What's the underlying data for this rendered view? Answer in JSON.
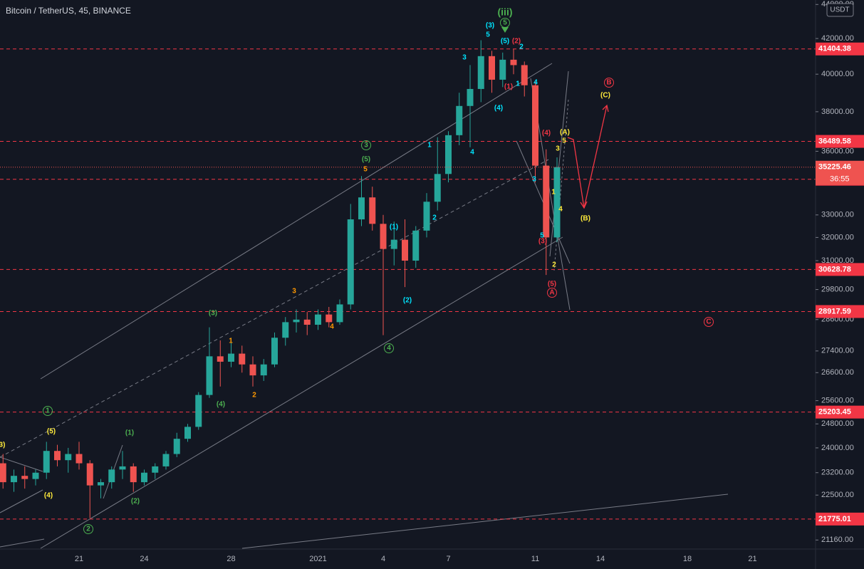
{
  "header": {
    "symbol": "Bitcoin / TetherUS, 45, BINANCE",
    "currency": "USDT"
  },
  "chart_data": {
    "type": "candlestick",
    "log_scale": true,
    "up_color": "#26a69a",
    "down_color": "#ef5350",
    "categories": [
      null,
      null,
      null,
      null,
      null,
      null,
      null,
      "21",
      null,
      null,
      null,
      null,
      null,
      "24",
      null,
      null,
      null,
      null,
      null,
      null,
      null,
      "28",
      null,
      null,
      null,
      null,
      null,
      null,
      null,
      "2021",
      null,
      null,
      null,
      null,
      null,
      "4",
      null,
      null,
      null,
      null,
      null,
      "7",
      null,
      null,
      null,
      null,
      null,
      null,
      null,
      "11",
      null,
      null,
      null,
      null,
      null,
      "14",
      null,
      null,
      null,
      null,
      null,
      null,
      null,
      "18",
      null,
      null,
      null,
      null,
      null,
      "21",
      null,
      null,
      null,
      null,
      null
    ],
    "values": [
      [
        23500,
        23800,
        22700,
        22900
      ],
      [
        22900,
        23300,
        22600,
        23100
      ],
      [
        23100,
        23400,
        22700,
        23000
      ],
      [
        23000,
        23300,
        22800,
        23200
      ],
      [
        23200,
        24200,
        23000,
        23900
      ],
      [
        23900,
        24100,
        23400,
        23600
      ],
      [
        23600,
        24000,
        23200,
        23800
      ],
      [
        23800,
        24200,
        23300,
        23500
      ],
      [
        23500,
        23600,
        21800,
        22800
      ],
      [
        22800,
        23000,
        22400,
        22900
      ],
      [
        22900,
        23400,
        22700,
        23300
      ],
      [
        23300,
        23900,
        23000,
        23400
      ],
      [
        23400,
        23500,
        22600,
        22900
      ],
      [
        22900,
        23300,
        22800,
        23200
      ],
      [
        23200,
        23500,
        23000,
        23400
      ],
      [
        23400,
        23900,
        23300,
        23800
      ],
      [
        23800,
        24500,
        23700,
        24300
      ],
      [
        24300,
        24800,
        24200,
        24700
      ],
      [
        24700,
        25900,
        24600,
        25800
      ],
      [
        25800,
        28300,
        25700,
        27200
      ],
      [
        27200,
        27800,
        26100,
        27000
      ],
      [
        27000,
        27900,
        26800,
        27300
      ],
      [
        27300,
        27600,
        26600,
        26900
      ],
      [
        26900,
        27200,
        26100,
        26500
      ],
      [
        26500,
        27100,
        26300,
        26900
      ],
      [
        26900,
        28100,
        26800,
        27900
      ],
      [
        27900,
        28700,
        27600,
        28500
      ],
      [
        28500,
        29000,
        28100,
        28600
      ],
      [
        28600,
        28900,
        28000,
        28400
      ],
      [
        28400,
        29000,
        28200,
        28800
      ],
      [
        28800,
        29100,
        28300,
        28500
      ],
      [
        28500,
        29400,
        28400,
        29200
      ],
      [
        29200,
        33500,
        29000,
        32800
      ],
      [
        32800,
        34800,
        32500,
        33800
      ],
      [
        33800,
        34300,
        32300,
        32600
      ],
      [
        32600,
        33000,
        28000,
        31500
      ],
      [
        31500,
        32700,
        30800,
        31900
      ],
      [
        31900,
        32800,
        29900,
        31000
      ],
      [
        31000,
        32500,
        30700,
        32300
      ],
      [
        32300,
        34000,
        32000,
        33600
      ],
      [
        33600,
        36700,
        33200,
        34900
      ],
      [
        34900,
        37000,
        34500,
        36800
      ],
      [
        36800,
        39000,
        36300,
        38300
      ],
      [
        38300,
        40500,
        36200,
        39200
      ],
      [
        39200,
        41900,
        38500,
        41000
      ],
      [
        41000,
        41300,
        39000,
        39700
      ],
      [
        39700,
        41200,
        39300,
        40800
      ],
      [
        40800,
        41400,
        40000,
        40500
      ],
      [
        40500,
        40700,
        38800,
        39400
      ],
      [
        39400,
        39600,
        34500,
        35300
      ],
      [
        35300,
        36100,
        30400,
        32000
      ],
      [
        32000,
        35700,
        31800,
        35225.46
      ],
      null,
      null,
      null,
      null,
      null,
      null,
      null,
      null,
      null,
      null,
      null,
      null,
      null,
      null,
      null,
      null,
      null,
      null,
      null,
      null,
      null,
      null,
      null
    ],
    "ylim": [
      20920,
      44270
    ],
    "yticks": [
      {
        "value": 44000,
        "label": "44000.00"
      },
      {
        "value": 42000,
        "label": "42000.00"
      },
      {
        "value": 40000,
        "label": "40000.00"
      },
      {
        "value": 38000,
        "label": "38000.00"
      },
      {
        "value": 36000,
        "label": "36000.00"
      },
      {
        "value": 33000,
        "label": "33000.00"
      },
      {
        "value": 32000,
        "label": "32000.00"
      },
      {
        "value": 31000,
        "label": "31000.00"
      },
      {
        "value": 29800,
        "label": "29800.00"
      },
      {
        "value": 28600,
        "label": "28600.00"
      },
      {
        "value": 27400,
        "label": "27400.00"
      },
      {
        "value": 26600,
        "label": "26600.00"
      },
      {
        "value": 25600,
        "label": "25600.00"
      },
      {
        "value": 24800,
        "label": "24800.00"
      },
      {
        "value": 24000,
        "label": "24000.00"
      },
      {
        "value": 23200,
        "label": "23200.00"
      },
      {
        "value": 22500,
        "label": "22500.00"
      },
      {
        "value": 21160,
        "label": "21160.00"
      }
    ],
    "levels": [
      41404.38,
      36489.58,
      34649.55,
      30628.78,
      28917.59,
      25203.45,
      21775.01
    ],
    "level_color": "#f23645",
    "countdown": "36:55",
    "annotations": [
      {
        "text": "3)",
        "color": "#ffeb3b"
      },
      {
        "text": "(5)",
        "color": "#ffeb3b"
      },
      {
        "text": "1",
        "color": "#4caf50"
      },
      {
        "text": "(4)",
        "color": "#ffeb3b"
      },
      {
        "text": "(1)",
        "color": "#4caf50"
      },
      {
        "text": "(2)",
        "color": "#4caf50"
      },
      {
        "text": "2",
        "color": "#4caf50"
      },
      {
        "text": "(3)",
        "color": "#4caf50"
      },
      {
        "text": "(4)",
        "color": "#4caf50"
      },
      {
        "text": "1",
        "color": "#ff9800"
      },
      {
        "text": "2",
        "color": "#ff9800"
      },
      {
        "text": "3",
        "color": "#ff9800"
      },
      {
        "text": "4",
        "color": "#ff9800"
      },
      {
        "text": "5",
        "color": "#ff9800"
      },
      {
        "text": "(5)",
        "color": "#4caf50"
      },
      {
        "text": "3",
        "color": "#4caf50"
      },
      {
        "text": "4",
        "color": "#4caf50"
      },
      {
        "text": "(1)",
        "color": "#00e5ff"
      },
      {
        "text": "(2)",
        "color": "#00e5ff"
      },
      {
        "text": "1",
        "color": "#00e5ff"
      },
      {
        "text": "2",
        "color": "#00e5ff"
      },
      {
        "text": "3",
        "color": "#00e5ff"
      },
      {
        "text": "4",
        "color": "#00e5ff"
      },
      {
        "text": "5",
        "color": "#00e5ff"
      },
      {
        "text": "(3)",
        "color": "#00e5ff"
      },
      {
        "text": "(4)",
        "color": "#00e5ff"
      },
      {
        "text": "(iii)",
        "color": "#4caf50"
      },
      {
        "text": "5",
        "color": "#4caf50"
      },
      {
        "text": "(5)",
        "color": "#00e5ff"
      },
      {
        "text": "(2)",
        "color": "#f23645"
      },
      {
        "text": "2",
        "color": "#00e5ff"
      },
      {
        "text": "(1)",
        "color": "#f23645"
      },
      {
        "text": "1",
        "color": "#00e5ff"
      },
      {
        "text": "4",
        "color": "#00e5ff"
      },
      {
        "text": "(4)",
        "color": "#f23645"
      },
      {
        "text": "3",
        "color": "#00e5ff"
      },
      {
        "text": "5",
        "color": "#00e5ff"
      },
      {
        "text": "(3)",
        "color": "#f23645"
      },
      {
        "text": "2",
        "color": "#ffeb3b"
      },
      {
        "text": "(5)",
        "color": "#f23645"
      },
      {
        "text": "A",
        "color": "#f23645"
      },
      {
        "text": "1",
        "color": "#ffeb3b"
      },
      {
        "text": "3",
        "color": "#ffeb3b"
      },
      {
        "text": "4",
        "color": "#ffeb3b"
      },
      {
        "text": "5",
        "color": "#ffeb3b"
      },
      {
        "text": "(A)",
        "color": "#ffeb3b"
      },
      {
        "text": "(B)",
        "color": "#ffeb3b"
      },
      {
        "text": "(C)",
        "color": "#ffeb3b"
      },
      {
        "text": "B",
        "color": "#f23645"
      },
      {
        "text": "C",
        "color": "#f23645"
      }
    ]
  }
}
